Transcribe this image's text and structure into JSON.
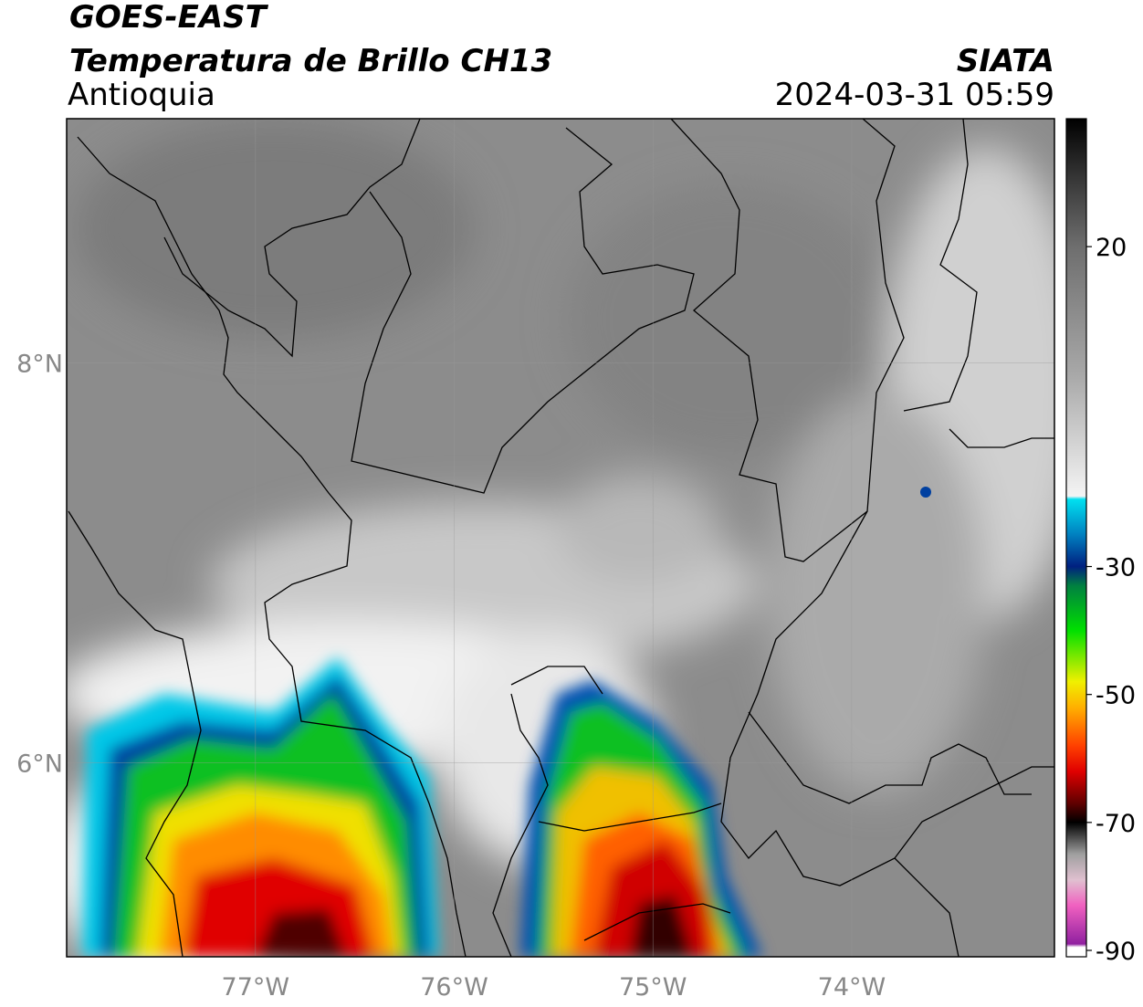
{
  "header": {
    "line1": "GOES-EAST",
    "line2": "Temperatura de Brillo CH13",
    "region": "Antioquia",
    "source": "SIATA",
    "datetime": "2024-03-31 05:59"
  },
  "map": {
    "xlim": [
      -77.95,
      -72.98
    ],
    "ylim": [
      5.03,
      9.22
    ],
    "xticks": [
      {
        "value": -77,
        "label": "77°W"
      },
      {
        "value": -76,
        "label": "76°W"
      },
      {
        "value": -75,
        "label": "75°W"
      },
      {
        "value": -74,
        "label": "74°W"
      }
    ],
    "yticks": [
      {
        "value": 6,
        "label": "6°N"
      },
      {
        "value": 8,
        "label": "8°N"
      }
    ],
    "grid": true
  },
  "colorbar": {
    "lim": [
      -91,
      40
    ],
    "ticks": [
      20,
      -30,
      -50,
      -70,
      -90
    ],
    "stops": [
      [
        40,
        "#000000"
      ],
      [
        30,
        "#3a3a3a"
      ],
      [
        20,
        "#6e6e6e"
      ],
      [
        0,
        "#a8a8a8"
      ],
      [
        -19,
        "#f4f4f4"
      ],
      [
        -19.5,
        "#00e0f0"
      ],
      [
        -25,
        "#0080c0"
      ],
      [
        -30,
        "#002080"
      ],
      [
        -33,
        "#008040"
      ],
      [
        -40,
        "#00e000"
      ],
      [
        -48,
        "#f0f000"
      ],
      [
        -52,
        "#ffb000"
      ],
      [
        -58,
        "#ff4000"
      ],
      [
        -62,
        "#e00000"
      ],
      [
        -67,
        "#600000"
      ],
      [
        -70,
        "#000000"
      ],
      [
        -75,
        "#a0a0a0"
      ],
      [
        -79,
        "#e0c0d0"
      ],
      [
        -83,
        "#f060c0"
      ],
      [
        -89,
        "#9020a0"
      ],
      [
        -89.5,
        "#ffffff"
      ],
      [
        -91,
        "#ffffff"
      ]
    ]
  }
}
